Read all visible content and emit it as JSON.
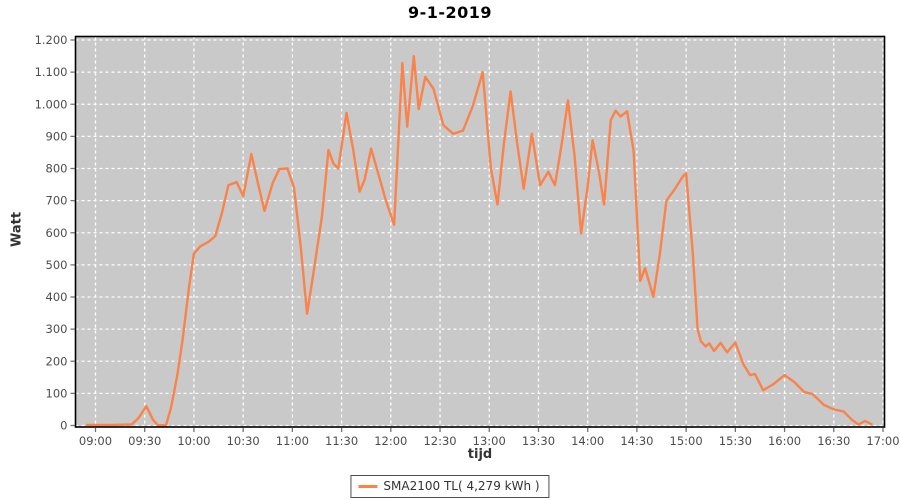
{
  "title": "9-1-2019",
  "colors": {
    "page_bg": "#ffffff",
    "plot_bg": "#c9c9c9",
    "grid": "#ffffff",
    "series": "#f9834a",
    "plot_border": "#000000",
    "tick_mark": "#737373",
    "tick_label": "#4d4d4d"
  },
  "legend": {
    "label": "SMA2100 TL( 4,279 kWh )"
  },
  "chart_data": {
    "type": "line",
    "title": "9-1-2019",
    "xlabel": "tijd",
    "ylabel": "Watt",
    "grid": true,
    "legend_position": "bottom-center",
    "x_tick_labels": [
      "09:00",
      "09:30",
      "10:00",
      "10:30",
      "11:00",
      "11:30",
      "12:00",
      "12:30",
      "13:00",
      "13:30",
      "14:00",
      "14:30",
      "15:00",
      "15:30",
      "16:00",
      "16:30",
      "17:00"
    ],
    "y_tick_labels": [
      "0",
      "100",
      "200",
      "300",
      "400",
      "500",
      "600",
      "700",
      "800",
      "900",
      "1.000",
      "1.100",
      "1.200"
    ],
    "y_tick_values": [
      0,
      100,
      200,
      300,
      400,
      500,
      600,
      700,
      800,
      900,
      1000,
      1100,
      1200
    ],
    "xlim": [
      "08:48",
      "17:00"
    ],
    "ylim": [
      0,
      1200
    ],
    "series": [
      {
        "name": "SMA2100 TL( 4,279 kWh )",
        "color": "#f9834a",
        "points": [
          [
            "08:55",
            2
          ],
          [
            "09:00",
            2
          ],
          [
            "09:10",
            2
          ],
          [
            "09:22",
            3
          ],
          [
            "09:26",
            22
          ],
          [
            "09:31",
            60
          ],
          [
            "09:35",
            18
          ],
          [
            "09:38",
            1
          ],
          [
            "09:43",
            1
          ],
          [
            "09:46",
            55
          ],
          [
            "09:50",
            160
          ],
          [
            "09:53",
            265
          ],
          [
            "09:57",
            430
          ],
          [
            "10:00",
            535
          ],
          [
            "10:04",
            558
          ],
          [
            "10:09",
            572
          ],
          [
            "10:13",
            590
          ],
          [
            "10:17",
            660
          ],
          [
            "10:21",
            748
          ],
          [
            "10:26",
            758
          ],
          [
            "10:30",
            714
          ],
          [
            "10:35",
            845
          ],
          [
            "10:39",
            755
          ],
          [
            "10:43",
            668
          ],
          [
            "10:48",
            755
          ],
          [
            "10:52",
            798
          ],
          [
            "10:57",
            800
          ],
          [
            "11:01",
            740
          ],
          [
            "11:05",
            560
          ],
          [
            "11:09",
            348
          ],
          [
            "11:13",
            480
          ],
          [
            "11:18",
            650
          ],
          [
            "11:22",
            858
          ],
          [
            "11:25",
            815
          ],
          [
            "11:28",
            800
          ],
          [
            "11:33",
            973
          ],
          [
            "11:37",
            860
          ],
          [
            "11:41",
            728
          ],
          [
            "11:44",
            765
          ],
          [
            "11:48",
            862
          ],
          [
            "11:52",
            790
          ],
          [
            "11:57",
            700
          ],
          [
            "12:02",
            625
          ],
          [
            "12:07",
            1128
          ],
          [
            "12:10",
            930
          ],
          [
            "12:14",
            1150
          ],
          [
            "12:17",
            985
          ],
          [
            "12:21",
            1085
          ],
          [
            "12:26",
            1048
          ],
          [
            "12:32",
            935
          ],
          [
            "12:38",
            908
          ],
          [
            "12:44",
            918
          ],
          [
            "12:50",
            995
          ],
          [
            "12:56",
            1100
          ],
          [
            "13:01",
            800
          ],
          [
            "13:05",
            688
          ],
          [
            "13:09",
            880
          ],
          [
            "13:13",
            1040
          ],
          [
            "13:17",
            880
          ],
          [
            "13:21",
            737
          ],
          [
            "13:26",
            908
          ],
          [
            "13:31",
            748
          ],
          [
            "13:36",
            790
          ],
          [
            "13:40",
            748
          ],
          [
            "13:44",
            870
          ],
          [
            "13:48",
            1012
          ],
          [
            "13:52",
            838
          ],
          [
            "13:56",
            598
          ],
          [
            "14:00",
            745
          ],
          [
            "14:03",
            888
          ],
          [
            "14:07",
            785
          ],
          [
            "14:10",
            688
          ],
          [
            "14:14",
            950
          ],
          [
            "14:17",
            980
          ],
          [
            "14:20",
            962
          ],
          [
            "14:24",
            978
          ],
          [
            "14:28",
            855
          ],
          [
            "14:32",
            450
          ],
          [
            "14:35",
            490
          ],
          [
            "14:40",
            400
          ],
          [
            "14:44",
            535
          ],
          [
            "14:48",
            700
          ],
          [
            "14:53",
            735
          ],
          [
            "14:58",
            775
          ],
          [
            "15:00",
            785
          ],
          [
            "15:04",
            540
          ],
          [
            "15:07",
            300
          ],
          [
            "15:09",
            262
          ],
          [
            "15:12",
            246
          ],
          [
            "15:14",
            256
          ],
          [
            "15:17",
            232
          ],
          [
            "15:21",
            257
          ],
          [
            "15:25",
            228
          ],
          [
            "15:30",
            258
          ],
          [
            "15:35",
            190
          ],
          [
            "15:39",
            157
          ],
          [
            "15:42",
            160
          ],
          [
            "15:47",
            110
          ],
          [
            "15:53",
            128
          ],
          [
            "16:00",
            157
          ],
          [
            "16:06",
            135
          ],
          [
            "16:12",
            104
          ],
          [
            "16:17",
            98
          ],
          [
            "16:24",
            64
          ],
          [
            "16:30",
            50
          ],
          [
            "16:36",
            44
          ],
          [
            "16:41",
            18
          ],
          [
            "16:45",
            3
          ],
          [
            "16:49",
            14
          ],
          [
            "16:53",
            4
          ]
        ]
      }
    ]
  }
}
